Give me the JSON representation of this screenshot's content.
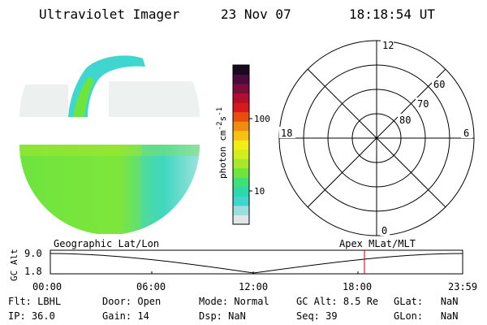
{
  "header": {
    "title": "Ultraviolet Imager",
    "date": "23 Nov 07",
    "time": "18:18:54 UT"
  },
  "colorbar": {
    "unit_label": "photon cm",
    "unit_sup1": "-2",
    "unit_mid": "s",
    "unit_sup2": "-1",
    "tick_100": "100",
    "tick_10": "10",
    "colors": [
      "#dfe7e6",
      "#9cdede",
      "#3fd6cf",
      "#2ed8ad",
      "#3ee07a",
      "#6ee43f",
      "#a6e82a",
      "#d2ee1e",
      "#f2ec18",
      "#f6c014",
      "#f08c10",
      "#e84e0e",
      "#d6191b",
      "#b0102e",
      "#7c0d3b",
      "#4b0b3e",
      "#1a0820"
    ]
  },
  "polar": {
    "label_12": "12",
    "label_6": "6",
    "label_18": "18",
    "label_0": "0",
    "label_60": "60",
    "label_70": "70",
    "label_80": "80"
  },
  "altitude_plot": {
    "left_title": "Geographic Lat/Lon",
    "right_title": "Apex  MLat/MLT",
    "y_label": "GC Alt",
    "y_top": "9.0",
    "y_bottom": "1.8",
    "x_ticks": [
      "00:00",
      "06:00",
      "12:00",
      "18:00",
      "23:59"
    ],
    "marker_color": "#cc0000"
  },
  "status": {
    "flt_label": "Flt:",
    "flt_value": "LBHL",
    "ip_label": "IP:",
    "ip_value": "36.0",
    "door_label": "Door:",
    "door_value": "Open",
    "gain_label": "Gain:",
    "gain_value": "14",
    "mode_label": "Mode:",
    "mode_value": "Normal",
    "dsp_label": "Dsp:",
    "dsp_value": "NaN",
    "gcalt_label": "GC Alt:",
    "gcalt_value": "8.5 Re",
    "seq_label": "Seq:",
    "seq_value": "39",
    "glat_label": "GLat:",
    "glat_value": "NaN",
    "glon_label": "GLon:",
    "glon_value": "NaN"
  }
}
